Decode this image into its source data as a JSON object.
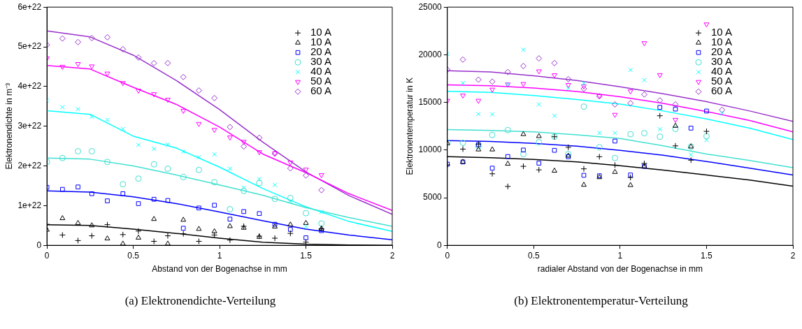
{
  "chart_data": [
    {
      "type": "scatter",
      "xlabel": "Abstand von der Bogenachse in mm",
      "ylabel": "Elektronendichte in m⁻³",
      "xlim": [
        0,
        2
      ],
      "xticks": [
        0,
        0.5,
        1,
        1.5,
        2
      ],
      "ylim": [
        0,
        6e+22
      ],
      "yticks": [
        0,
        {
          "value": 1e+22,
          "label": "1e+22"
        },
        {
          "value": 2e+22,
          "label": "2e+22"
        },
        {
          "value": 3e+22,
          "label": "3e+22"
        },
        {
          "value": 4e+22,
          "label": "4e+22"
        },
        {
          "value": 5e+22,
          "label": "5e+22"
        },
        {
          "value": 6e+22,
          "label": "6e+22"
        }
      ],
      "grid": false,
      "legend": "top right",
      "annotations": [
        "(a) Elektronendichte-Verteilung"
      ],
      "x": [
        0,
        0.09,
        0.18,
        0.26,
        0.35,
        0.44,
        0.53,
        0.62,
        0.7,
        0.79,
        0.88,
        0.97,
        1.06,
        1.14,
        1.23,
        1.32,
        1.41,
        1.5,
        1.59
      ],
      "series": [
        {
          "name": "10 A",
          "color": "#000000",
          "marker": "cross",
          "values": [
            5.3e+21,
            2.6e+21,
            1.2e+21,
            2.4e+21,
            5.2e+21,
            2.7e+21,
            3.6e+21,
            1e+21,
            2.4e+21,
            2.9e+21,
            1e+21,
            2.6e+21,
            1.3e+21,
            4.8e+21,
            2.3e+21,
            1.8e+21,
            3e+21,
            8e+20,
            4.2e+21
          ]
        },
        {
          "name": "10 A",
          "color": "#000000",
          "marker": "triangle",
          "values": [
            3.9e+21,
            6.8e+21,
            5.6e+21,
            5e+21,
            1.7e+21,
            4e+20,
            1.9e+21,
            6.6e+21,
            4e+20,
            6.4e+21,
            4.1e+21,
            3.5e+21,
            4.8e+21,
            4.4e+21,
            2.1e+21,
            4.7e+21,
            5.2e+21,
            5.6e+21,
            4.2e+21
          ]
        },
        {
          "name": "20 A",
          "color": "#0000ff",
          "marker": "square",
          "values": [
            1.46e+22,
            1.41e+22,
            1.47e+22,
            1.3e+22,
            1.12e+22,
            1.3e+22,
            1.05e+22,
            1.16e+22,
            1.13e+22,
            4.3e+21,
            9.4e+21,
            1.01e+22,
            6.6e+21,
            8.5e+21,
            8e+21,
            5.3e+21,
            4e+21,
            1.9e+21,
            3.7e+21
          ]
        },
        {
          "name": "30 A",
          "color": "#40e0d0",
          "marker": "circle",
          "values": [
            2.1e+22,
            2.2e+22,
            2.37e+22,
            2.37e+22,
            2.1e+22,
            1.54e+22,
            1.68e+22,
            2.04e+22,
            1.93e+22,
            1.72e+22,
            1.9e+22,
            1.59e+22,
            9.1e+21,
            1.37e+22,
            1.57e+22,
            1.17e+22,
            1.19e+22,
            8.1e+21,
            5.5e+21
          ]
        },
        {
          "name": "40 A",
          "color": "#00ffff",
          "marker": "x",
          "values": [
            3.65e+22,
            3.48e+22,
            3.43e+22,
            3.24e+22,
            3.16e+22,
            2.93e+22,
            2.53e+22,
            2.43e+22,
            2.54e+22,
            2.36e+22,
            2.22e+22,
            2.29e+22,
            1.93e+22,
            1.45e+22,
            1.67e+22,
            1.52e+22,
            1.11e+22,
            4.7e+21,
            8.4e+21
          ]
        },
        {
          "name": "50 A",
          "color": "#ff00ff",
          "marker": "triangle-down",
          "values": [
            4.71e+22,
            4.5e+22,
            4.57e+22,
            4.51e+22,
            4.33e+22,
            4.09e+22,
            3.9e+22,
            3.81e+22,
            3.67e+22,
            3.39e+22,
            3.06e+22,
            2.91e+22,
            2.72e+22,
            2.61e+22,
            2.35e+22,
            2.32e+22,
            2.09e+22,
            1.91e+22,
            1.77e+22
          ]
        },
        {
          "name": "60 A",
          "color": "#9932cc",
          "marker": "diamond",
          "values": [
            5.05e+22,
            5.21e+22,
            5.12e+22,
            5.22e+22,
            5.24e+22,
            4.94e+22,
            4.73e+22,
            4.59e+22,
            4.59e+22,
            4.24e+22,
            3.9e+22,
            3.71e+22,
            2.98e+22,
            2.49e+22,
            2.71e+22,
            2.31e+22,
            1.94e+22,
            1.76e+22,
            1.39e+22
          ]
        },
        {
          "type": "line",
          "color": "#000000",
          "marker": "none",
          "x": [
            0,
            0.25,
            0.5,
            0.75,
            1,
            1.25,
            1.5,
            1.75,
            2
          ],
          "values": [
            5.2e+21,
            5e+21,
            4.1e+21,
            3e+21,
            1.8e+21,
            8e+20,
            3e+20,
            1e+20,
            0
          ]
        },
        {
          "type": "line",
          "color": "#0000ff",
          "marker": "none",
          "x": [
            0,
            0.25,
            0.5,
            0.75,
            1,
            1.25,
            1.5,
            1.75,
            2
          ],
          "values": [
            1.37e+22,
            1.34e+22,
            1.22e+22,
            1.05e+22,
            8.4e+21,
            6.2e+21,
            4.1e+21,
            2.6e+21,
            1.4e+21
          ]
        },
        {
          "type": "line",
          "color": "#40e0d0",
          "marker": "none",
          "x": [
            0,
            0.25,
            0.5,
            0.75,
            1,
            1.25,
            1.5,
            1.75,
            2
          ],
          "values": [
            2.2e+22,
            2.17e+22,
            2e+22,
            1.77e+22,
            1.52e+22,
            1.26e+22,
            9.5e+21,
            7e+21,
            4.8e+21
          ]
        },
        {
          "type": "line",
          "color": "#00ffff",
          "marker": "none",
          "x": [
            0,
            0.25,
            0.5,
            0.75,
            1,
            1.25,
            1.5,
            1.75,
            2
          ],
          "values": [
            3.39e+22,
            3.3e+22,
            2.75e+22,
            2.45e+22,
            1.97e+22,
            1.43e+22,
            9.7e+21,
            6e+21,
            3.5e+21
          ]
        },
        {
          "type": "line",
          "color": "#ff00ff",
          "marker": "none",
          "x": [
            0,
            0.25,
            0.5,
            0.75,
            1,
            1.25,
            1.5,
            1.75,
            2
          ],
          "values": [
            4.53e+22,
            4.44e+22,
            3.98e+22,
            3.55e+22,
            2.98e+22,
            2.3e+22,
            1.83e+22,
            1.3e+22,
            8.8e+21
          ]
        },
        {
          "type": "line",
          "color": "#9932cc",
          "marker": "none",
          "x": [
            0,
            0.25,
            0.5,
            0.75,
            1,
            1.25,
            1.5,
            1.75,
            2
          ],
          "values": [
            5.4e+22,
            5.25e+22,
            4.79e+22,
            4.15e+22,
            3.42e+22,
            2.6e+22,
            1.85e+22,
            1.25e+22,
            7.8e+21
          ]
        }
      ]
    },
    {
      "type": "scatter",
      "xlabel": "radialer Abstand von der Bogenachse in mm",
      "ylabel": "Elektronentemperatur in K",
      "xlim": [
        0,
        2
      ],
      "xticks": [
        0,
        0.5,
        1,
        1.5,
        2
      ],
      "ylim": [
        0,
        25000
      ],
      "yticks": [
        0,
        5000,
        10000,
        15000,
        20000,
        25000
      ],
      "grid": false,
      "legend": "top right",
      "annotations": [
        "(b) Elektronentemperatur-Verteilung"
      ],
      "x": [
        0,
        0.09,
        0.18,
        0.26,
        0.35,
        0.44,
        0.53,
        0.62,
        0.7,
        0.79,
        0.88,
        0.97,
        1.06,
        1.14,
        1.23,
        1.32,
        1.41,
        1.5,
        1.59
      ],
      "series": [
        {
          "name": "10 A",
          "color": "#000000",
          "marker": "cross",
          "values": [
            8440,
            10100,
            10620,
            7510,
            6180,
            8290,
            7920,
            11400,
            10290,
            8030,
            9300,
            8420,
            7120,
            8600,
            13600,
            10440,
            8940,
            11960,
            null
          ]
        },
        {
          "name": "10 A",
          "color": "#000000",
          "marker": "triangle",
          "values": [
            10700,
            8750,
            10050,
            10050,
            8550,
            11660,
            11450,
            7820,
            9400,
            6340,
            7140,
            7690,
            6310,
            8290,
            null,
            12530,
            10360,
            null,
            null
          ]
        },
        {
          "name": "20 A",
          "color": "#0000ff",
          "marker": "square",
          "values": [
            8520,
            8750,
            10570,
            8100,
            9320,
            10000,
            8620,
            9970,
            9300,
            7350,
            7300,
            10940,
            7380,
            8290,
            14480,
            14300,
            12300,
            14090,
            null
          ]
        },
        {
          "name": "30 A",
          "color": "#40e0d0",
          "marker": "circle",
          "values": [
            10780,
            10750,
            10420,
            11580,
            12090,
            9580,
            10820,
            11400,
            9580,
            14560,
            10290,
            9170,
            11660,
            11770,
            11400,
            12220,
            10360,
            11450,
            null
          ]
        },
        {
          "name": "40 A",
          "color": "#00ffff",
          "marker": "x",
          "values": [
            20090,
            17030,
            13780,
            13750,
            16900,
            20530,
            14790,
            13600,
            16480,
            17010,
            11790,
            11790,
            18400,
            17340,
            12190,
            null,
            9510,
            11060,
            13860
          ]
        },
        {
          "name": "50 A",
          "color": "#ff00ff",
          "marker": "triangle-down",
          "values": [
            15180,
            15730,
            15180,
            16350,
            16900,
            16950,
            18270,
            17860,
            16840,
            16690,
            15680,
            13710,
            16170,
            21230,
            17880,
            13180,
            null,
            23200,
            null
          ]
        },
        {
          "name": "60 A",
          "color": "#9932cc",
          "marker": "diamond",
          "values": [
            18430,
            19490,
            17390,
            17180,
            18190,
            18820,
            19620,
            19130,
            17440,
            16430,
            15650,
            14790,
            14920,
            15830,
            15210,
            14790,
            null,
            null,
            14220
          ]
        },
        {
          "type": "line",
          "color": "#000000",
          "marker": "none",
          "x": [
            0,
            0.25,
            0.5,
            0.75,
            1,
            1.25,
            1.5,
            1.75,
            2
          ],
          "values": [
            9300,
            9200,
            9010,
            8750,
            8360,
            7900,
            7380,
            6850,
            6210
          ]
        },
        {
          "type": "line",
          "color": "#0000ff",
          "marker": "none",
          "x": [
            0,
            0.25,
            0.5,
            0.75,
            1,
            1.25,
            1.5,
            1.75,
            2
          ],
          "values": [
            10990,
            10900,
            10700,
            10400,
            9970,
            9450,
            8800,
            8100,
            7380
          ]
        },
        {
          "type": "line",
          "color": "#40e0d0",
          "marker": "none",
          "x": [
            0,
            0.25,
            0.5,
            0.75,
            1,
            1.25,
            1.5,
            1.75,
            2
          ],
          "values": [
            12140,
            12050,
            11910,
            11600,
            11220,
            10450,
            9580,
            8900,
            8160
          ]
        },
        {
          "type": "line",
          "color": "#00ffff",
          "marker": "none",
          "x": [
            0,
            0.25,
            0.5,
            0.75,
            1,
            1.25,
            1.5,
            1.75,
            2
          ],
          "values": [
            16170,
            16050,
            15730,
            15300,
            14820,
            14100,
            13260,
            12300,
            11100
          ]
        },
        {
          "type": "line",
          "color": "#ff00ff",
          "marker": "none",
          "x": [
            0,
            0.25,
            0.5,
            0.75,
            1,
            1.25,
            1.5,
            1.75,
            2
          ],
          "values": [
            16840,
            16750,
            16510,
            16150,
            15600,
            14900,
            14040,
            13100,
            11900
          ]
        },
        {
          "type": "line",
          "color": "#9932cc",
          "marker": "none",
          "x": [
            0,
            0.25,
            0.5,
            0.75,
            1,
            1.25,
            1.5,
            1.75,
            2
          ],
          "values": [
            18320,
            18200,
            17800,
            17300,
            16640,
            15900,
            15080,
            14100,
            13000
          ]
        }
      ]
    }
  ]
}
